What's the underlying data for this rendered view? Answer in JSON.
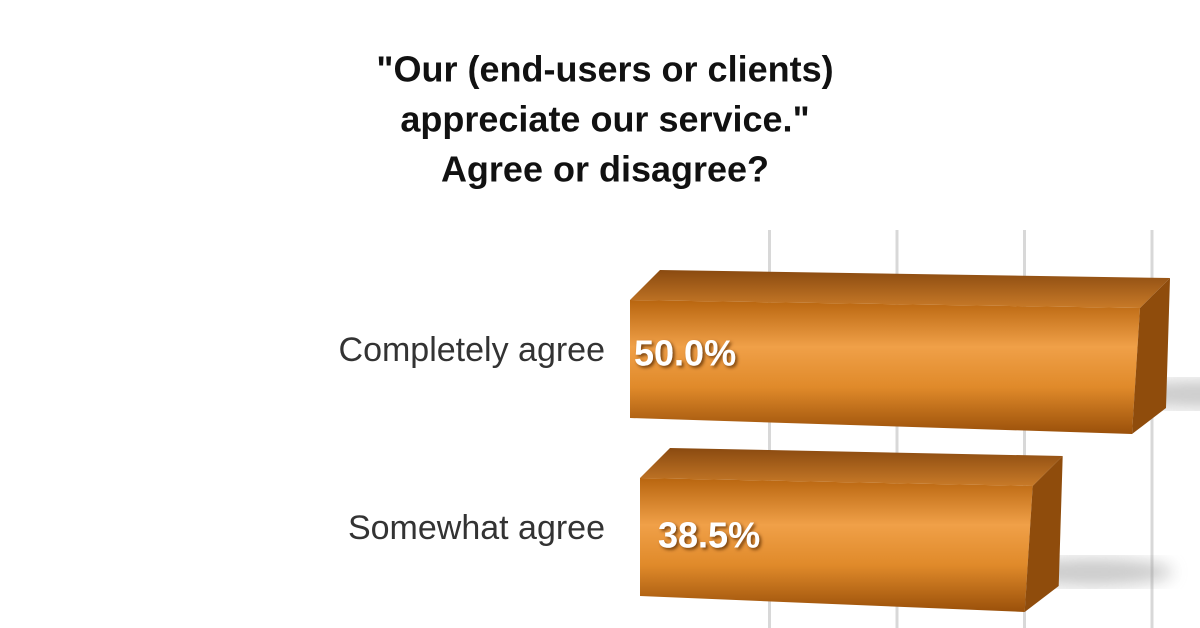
{
  "chart_data": {
    "type": "bar",
    "title": [
      "\"Our (end-users or clients)",
      "appreciate our service.\"",
      "Agree or disagree?"
    ],
    "categories": [
      "Completely agree",
      "Somewhat agree"
    ],
    "values": [
      50.0,
      38.5
    ],
    "value_labels": [
      "50.0%",
      "38.5%"
    ],
    "color": "#d9821f",
    "xlim": [
      0,
      50
    ],
    "xticks": [
      12.5,
      25,
      37.5,
      50
    ],
    "grid": true
  }
}
